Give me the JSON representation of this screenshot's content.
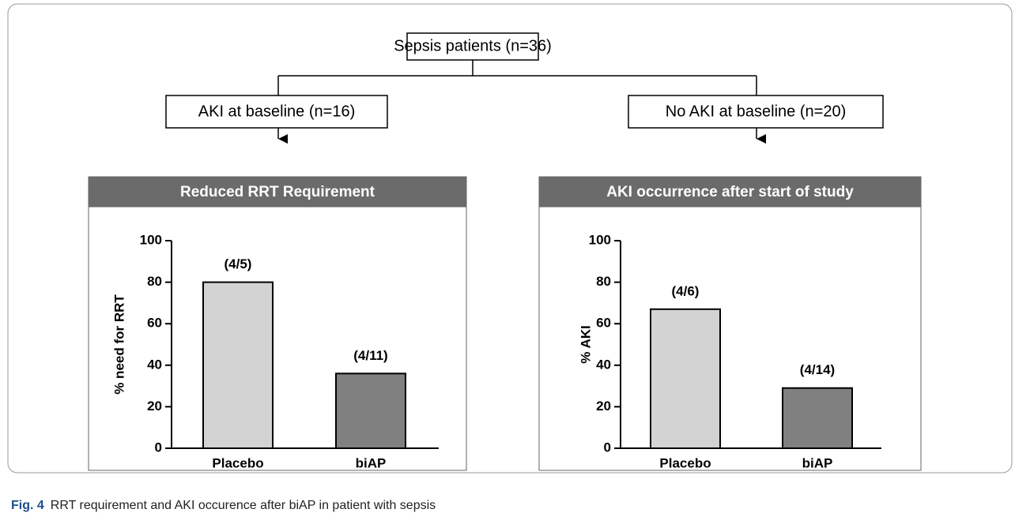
{
  "flow": {
    "root": "Sepsis patients (n=36)",
    "branches": [
      "AKI at baseline (n=16)",
      "No AKI at baseline (n=20)"
    ]
  },
  "chart_data": [
    {
      "type": "bar",
      "title": "Reduced RRT Requirement",
      "y_label": "% need for RRT",
      "categories": [
        "Placebo",
        "biAP"
      ],
      "values": [
        80,
        36
      ],
      "value_labels": [
        "(4/5)",
        "(4/11)"
      ],
      "colors": [
        "#d3d3d3",
        "#808080"
      ],
      "ylim": [
        0,
        100
      ],
      "yticks": [
        0,
        20,
        40,
        60,
        80,
        100
      ]
    },
    {
      "type": "bar",
      "title": "AKI occurrence after start of study",
      "y_label": "% AKI",
      "categories": [
        "Placebo",
        "biAP"
      ],
      "values": [
        67,
        29
      ],
      "value_labels": [
        "(4/6)",
        "(4/14)"
      ],
      "colors": [
        "#d3d3d3",
        "#808080"
      ],
      "ylim": [
        0,
        100
      ],
      "yticks": [
        0,
        20,
        40,
        60,
        80,
        100
      ]
    }
  ],
  "caption": {
    "label": "Fig. 4",
    "text": "RRT requirement and AKI occurence after biAP in patient with sepsis"
  }
}
